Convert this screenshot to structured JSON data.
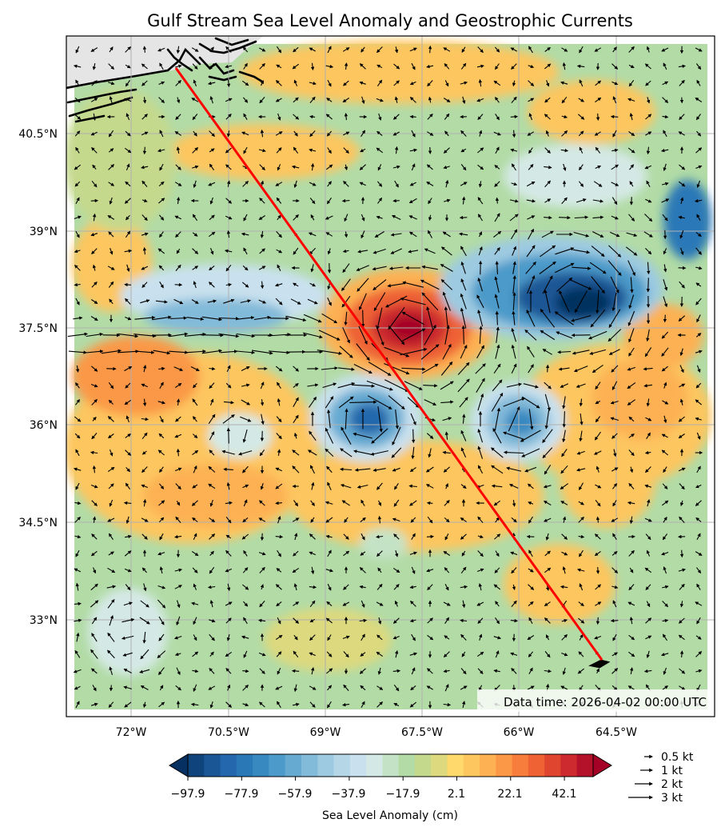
{
  "title": "Gulf Stream Sea Level Anomaly and Geostrophic Currents",
  "timestamp": "Data time: 2026-04-02 00:00 UTC",
  "lat_ticks": [
    "40.5°N",
    "39°N",
    "37.5°N",
    "36°N",
    "34.5°N",
    "33°N"
  ],
  "lon_ticks": [
    "72°W",
    "70.5°W",
    "69°W",
    "67.5°W",
    "66°W",
    "64.5°W"
  ],
  "colorbar": {
    "label": "Sea Level Anomaly (cm)",
    "ticks": [
      "−97.9",
      "−77.9",
      "−57.9",
      "−37.9",
      "−17.9",
      "2.1",
      "22.1",
      "42.1"
    ],
    "colors": [
      "#053061",
      "#0f437b",
      "#1a5695",
      "#2467ac",
      "#2b78b7",
      "#3989c1",
      "#4c9ac9",
      "#66aad2",
      "#82bad9",
      "#9dcae1",
      "#b4d6e7",
      "#c9e1ee",
      "#d4e9e5",
      "#c4e3c6",
      "#b2dba6",
      "#c5d98d",
      "#dcd97e",
      "#ffd96b",
      "#fdc65e",
      "#fdb152",
      "#fb9847",
      "#f67d3c",
      "#ee6234",
      "#e04530",
      "#cc2a2e",
      "#b4112a",
      "#a50026"
    ]
  },
  "quiver_key": [
    "0.5 kt",
    "1 kt",
    "2 kt",
    "3 kt"
  ],
  "transect": {
    "start": {
      "lon": "71.3°W",
      "lat": "41.3°N"
    },
    "end": {
      "lon": "64.7°W",
      "lat": "32.6°N"
    }
  },
  "colors": {
    "transect": "#ff0000",
    "land": "#e5e5e5",
    "coast": "#000000",
    "grid": "#b0b0b0"
  }
}
